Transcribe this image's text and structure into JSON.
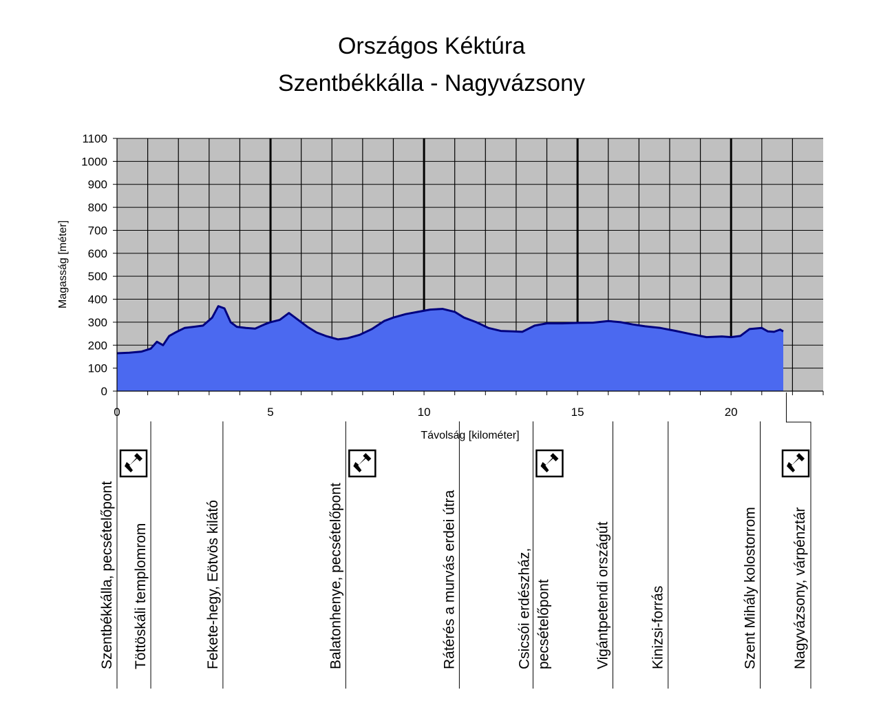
{
  "chart_data": {
    "type": "area",
    "title": "Országos Kéktúra",
    "subtitle": "Szentbékkálla - Nagyvázsony",
    "xlabel": "Távolság [kilométer]",
    "ylabel": "Magasság [méter]",
    "xlim": [
      0,
      23
    ],
    "ylim": [
      0,
      1100
    ],
    "x_ticks": [
      0,
      5,
      10,
      15,
      20
    ],
    "y_ticks": [
      0,
      100,
      200,
      300,
      400,
      500,
      600,
      700,
      800,
      900,
      1000,
      1100
    ],
    "grid": true,
    "plot_background": "#c0c0c0",
    "fill_color": "#4b69f0",
    "line_color": "#00007f",
    "profile": {
      "x": [
        0,
        0.4,
        0.8,
        1.1,
        1.3,
        1.5,
        1.7,
        1.9,
        2.2,
        2.5,
        2.8,
        3.1,
        3.3,
        3.5,
        3.7,
        3.9,
        4.2,
        4.5,
        4.8,
        5.0,
        5.3,
        5.6,
        5.9,
        6.2,
        6.5,
        6.8,
        7.2,
        7.5,
        7.9,
        8.3,
        8.7,
        9.0,
        9.4,
        9.8,
        10.2,
        10.6,
        11.0,
        11.3,
        11.7,
        12.1,
        12.5,
        12.9,
        13.2,
        13.6,
        14.0,
        14.5,
        15.0,
        15.5,
        16.0,
        16.4,
        16.8,
        17.2,
        17.7,
        18.2,
        18.7,
        19.2,
        19.7,
        20.0,
        20.3,
        20.6,
        21.0,
        21.2,
        21.4,
        21.6,
        21.7
      ],
      "y": [
        165,
        167,
        172,
        185,
        215,
        200,
        240,
        255,
        275,
        280,
        285,
        320,
        370,
        360,
        300,
        280,
        275,
        272,
        290,
        300,
        310,
        340,
        310,
        280,
        255,
        240,
        225,
        230,
        245,
        270,
        305,
        320,
        335,
        345,
        355,
        358,
        345,
        320,
        300,
        275,
        262,
        260,
        258,
        285,
        295,
        295,
        297,
        298,
        305,
        300,
        290,
        282,
        275,
        262,
        248,
        235,
        238,
        235,
        240,
        270,
        275,
        260,
        258,
        268,
        260
      ]
    },
    "major_grid_x": [
      5,
      10,
      15,
      20
    ],
    "minor_grid_x": [
      1,
      2,
      3,
      4,
      6,
      7,
      8,
      9,
      11,
      12,
      13,
      14,
      16,
      17,
      18,
      19,
      21,
      22
    ],
    "waypoints": [
      {
        "km": 0.0,
        "label": "Szentbékkálla, pecsételőpont",
        "stamp": true
      },
      {
        "km": 1.1,
        "label": "Töttöskáli templomrom",
        "stamp": false
      },
      {
        "km": 3.45,
        "label": "Fekete-hegy, Eötvös kilátó",
        "stamp": false
      },
      {
        "km": 7.45,
        "label": "Balatonhenye, pecsételőpont",
        "stamp": true
      },
      {
        "km": 11.15,
        "label": "Rátérés a murvás erdei útra",
        "stamp": false
      },
      {
        "km": 13.55,
        "label": "Csicsói erdészház,",
        "label2": "pecsételőpont",
        "stamp": true
      },
      {
        "km": 16.15,
        "label": "Vigántpetendi országút",
        "stamp": false
      },
      {
        "km": 17.95,
        "label": "Kinizsi-forrás",
        "stamp": false
      },
      {
        "km": 20.95,
        "label": "Szent Mihály kolostorrom",
        "stamp": false
      },
      {
        "km": 21.8,
        "label": "Nagyvázsony, várpénztár",
        "stamp": true
      }
    ]
  }
}
